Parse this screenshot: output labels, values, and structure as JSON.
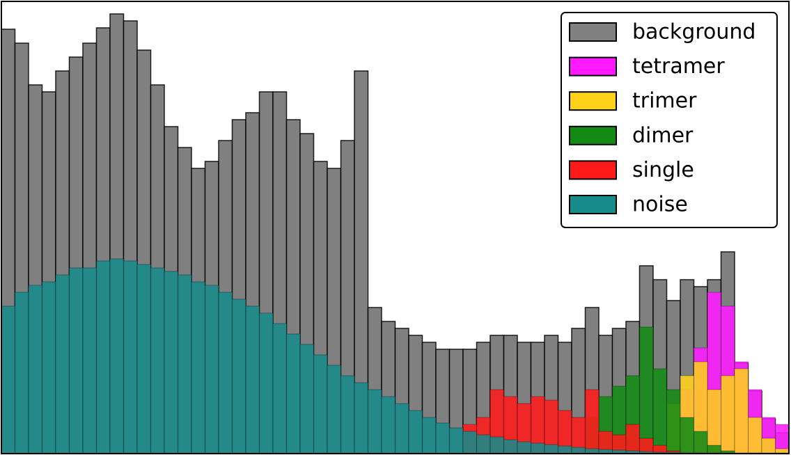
{
  "chart_data": {
    "type": "histogram",
    "bins": [
      0,
      1,
      2,
      3,
      4,
      5,
      6,
      7,
      8,
      9,
      10,
      11,
      12,
      13,
      14,
      15,
      16,
      17,
      18,
      19,
      20,
      21,
      22,
      23,
      24,
      25,
      26,
      27,
      28,
      29,
      30,
      31,
      32,
      33,
      34,
      35,
      36,
      37,
      38,
      39,
      40,
      41,
      42,
      43,
      44,
      45,
      46,
      47,
      48,
      49,
      50,
      51,
      52,
      53,
      54,
      55,
      56,
      57,
      58
    ],
    "xlim": [
      0,
      58
    ],
    "ylim": [
      0,
      650
    ],
    "legend": "upper right",
    "series": [
      {
        "name": "background",
        "color": "#808080",
        "values": [
          610,
          590,
          530,
          520,
          550,
          570,
          590,
          612,
          632,
          622,
          580,
          530,
          470,
          440,
          410,
          420,
          450,
          480,
          490,
          520,
          520,
          480,
          460,
          420,
          410,
          450,
          550,
          210,
          190,
          180,
          170,
          160,
          150,
          150,
          150,
          160,
          170,
          170,
          160,
          160,
          170,
          160,
          180,
          210,
          170,
          180,
          190,
          270,
          250,
          220,
          250,
          240,
          250,
          290,
          130,
          90,
          50,
          30
        ]
      },
      {
        "name": "tetramer",
        "color": "#ff1aff",
        "values": [
          0,
          0,
          0,
          0,
          0,
          0,
          0,
          0,
          0,
          0,
          0,
          0,
          0,
          0,
          0,
          0,
          0,
          0,
          0,
          0,
          0,
          0,
          0,
          0,
          0,
          0,
          0,
          0,
          0,
          0,
          0,
          0,
          0,
          0,
          0,
          0,
          0,
          0,
          0,
          0,
          0,
          0,
          0,
          0,
          0,
          0,
          0,
          0,
          0,
          0,
          92,
          152,
          232,
          212,
          132,
          92,
          52,
          42
        ]
      },
      {
        "name": "trimer",
        "color": "#ffd21a",
        "values": [
          0,
          0,
          0,
          0,
          0,
          0,
          0,
          0,
          0,
          0,
          0,
          0,
          0,
          0,
          0,
          0,
          0,
          0,
          0,
          0,
          0,
          0,
          0,
          0,
          0,
          0,
          0,
          0,
          0,
          0,
          0,
          0,
          0,
          0,
          0,
          0,
          0,
          0,
          0,
          0,
          0,
          0,
          0,
          0,
          0,
          0,
          0,
          0,
          0,
          72,
          112,
          132,
          92,
          112,
          122,
          52,
          22,
          7
        ]
      },
      {
        "name": "dimer",
        "color": "#138a13",
        "values": [
          0,
          0,
          0,
          0,
          0,
          0,
          0,
          0,
          0,
          0,
          0,
          0,
          0,
          0,
          0,
          0,
          0,
          0,
          0,
          0,
          0,
          0,
          0,
          0,
          0,
          0,
          0,
          0,
          0,
          0,
          0,
          0,
          0,
          0,
          0,
          0,
          0,
          0,
          0,
          0,
          0,
          0,
          0,
          52,
          82,
          97,
          112,
          182,
          122,
          92,
          52,
          32,
          12,
          4,
          0,
          0,
          0,
          0
        ]
      },
      {
        "name": "single",
        "color": "#ff1a1a",
        "values": [
          0,
          0,
          0,
          0,
          0,
          0,
          0,
          0,
          0,
          0,
          0,
          0,
          0,
          0,
          0,
          0,
          0,
          0,
          0,
          0,
          0,
          0,
          0,
          0,
          0,
          0,
          0,
          0,
          0,
          0,
          0,
          0,
          0,
          0,
          42,
          52,
          92,
          82,
          72,
          82,
          77,
          62,
          52,
          92,
          32,
          27,
          42,
          22,
          12,
          4,
          0,
          0,
          0,
          0,
          0,
          0,
          0,
          0
        ]
      },
      {
        "name": "noise",
        "color": "#178a8a",
        "values": [
          212,
          232,
          242,
          247,
          257,
          267,
          267,
          277,
          280,
          277,
          272,
          267,
          262,
          257,
          247,
          242,
          232,
          222,
          212,
          202,
          187,
          172,
          157,
          142,
          127,
          112,
          102,
          92,
          82,
          72,
          62,
          52,
          44,
          37,
          32,
          27,
          24,
          20,
          17,
          15,
          13,
          11,
          9,
          7,
          6,
          5,
          4,
          3,
          2,
          2,
          1,
          1,
          1,
          1,
          1,
          1,
          1,
          1
        ]
      }
    ]
  }
}
